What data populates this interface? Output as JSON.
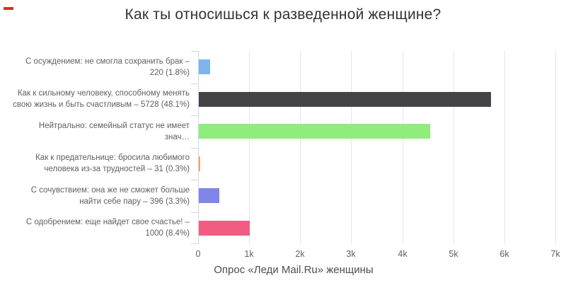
{
  "decorations": {
    "red_mark_color": "#df2b20"
  },
  "chart_data": {
    "type": "bar",
    "orientation": "horizontal",
    "title": "Как ты относишься к разведенной женщине?",
    "xlabel": "Опрос «Леди Mail.Ru» женщины",
    "xlim": [
      0,
      7000
    ],
    "x_ticks": [
      "0",
      "1k",
      "2k",
      "3k",
      "4k",
      "5k",
      "6k",
      "7k"
    ],
    "grid": true,
    "axis_line_color": "#ccd6eb",
    "gridline_color": "#e6e6e6",
    "categories": [
      "С осуждением: не смогла сохранить брак – 220 (1.8%)",
      "Как к сильному человеку, способному менять свою жизнь и быть счастливым – 5728 (48.1%)",
      "Нейтрально: семейный статус не имеет знач…",
      "Как к предательнице: бросила любимого человека из-за трудностей – 31 (0.3%)",
      "С сочувствием: она же не сможет больше найти себе пару – 396 (3.3%)",
      "С одобрением: еще найдет свое счастье! – 1000 (8.4%)"
    ],
    "values": [
      220,
      5728,
      4533,
      31,
      396,
      1000
    ],
    "bars": [
      {
        "label_lines": [
          "С осуждением: не смогла сохранить брак –",
          "220 (1.8%)"
        ],
        "value": 220,
        "color": "#7cb5ec"
      },
      {
        "label_lines": [
          "Как к сильному человеку, способному менять",
          "свою жизнь и быть счастливым – 5728 (48.1%)"
        ],
        "value": 5728,
        "color": "#434348"
      },
      {
        "label_lines": [
          "Нейтрально: семейный статус не имеет знач…"
        ],
        "value": 4533,
        "color": "#90ed7d"
      },
      {
        "label_lines": [
          "Как к предательнице: бросила любимого",
          "человека из-за трудностей – 31 (0.3%)"
        ],
        "value": 31,
        "color": "#f7a35c"
      },
      {
        "label_lines": [
          "С сочувствием: она же не сможет больше",
          "найти себе пару – 396 (3.3%)"
        ],
        "value": 396,
        "color": "#8085e9"
      },
      {
        "label_lines": [
          "С одобрением: еще найдет свое счастье! –",
          "1000 (8.4%)"
        ],
        "value": 1000,
        "color": "#f15c80"
      }
    ]
  }
}
